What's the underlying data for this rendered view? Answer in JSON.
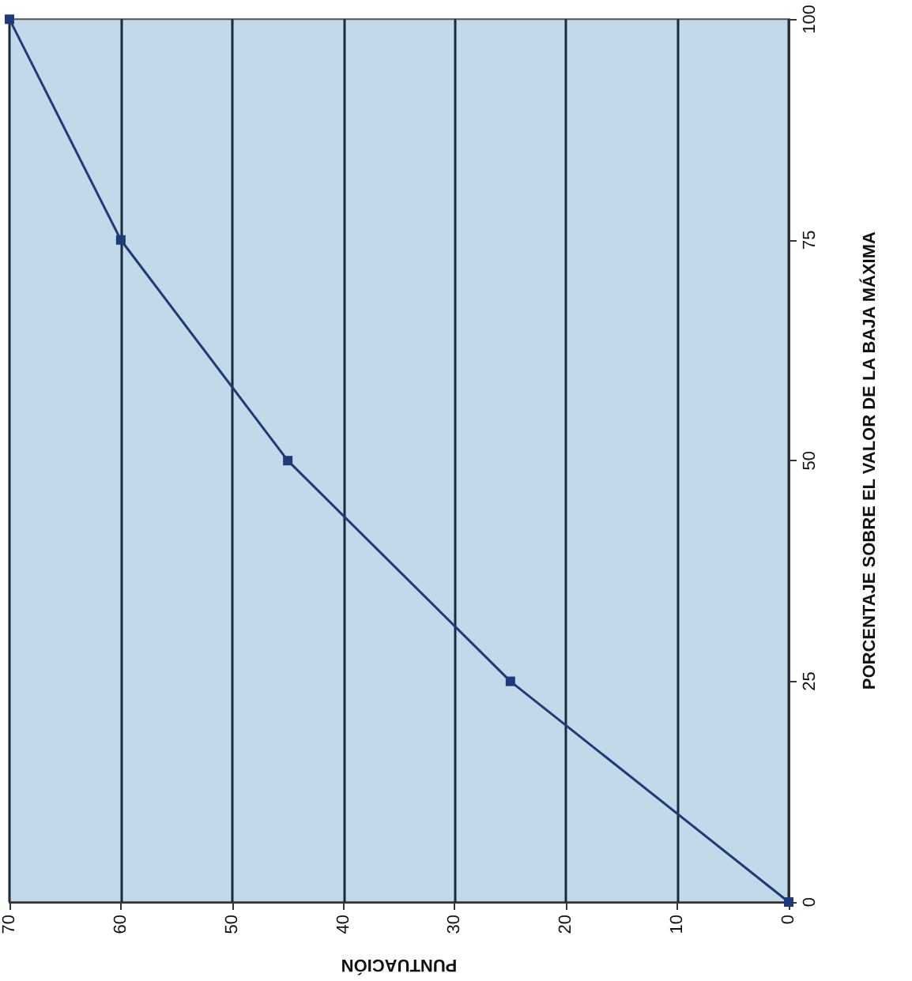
{
  "chart_data": {
    "type": "line",
    "xlabel": "PUNTUACIÓN",
    "ylabel": "PORCENTAJE SOBRE EL VALOR DE LA BAJA MÁXIMA",
    "x": [
      0,
      25,
      45,
      60,
      70
    ],
    "series": [
      {
        "color": "#1f3a7a",
        "values": [
          0,
          25,
          50,
          75,
          100
        ]
      }
    ],
    "xlim": [
      70,
      0
    ],
    "xticks": [
      70,
      60,
      50,
      40,
      30,
      20,
      10,
      0
    ],
    "ylim": [
      0,
      100
    ],
    "yticks": [
      0,
      25,
      50,
      75,
      100
    ],
    "grid": "x",
    "marker": "square",
    "line_style": "solid"
  }
}
